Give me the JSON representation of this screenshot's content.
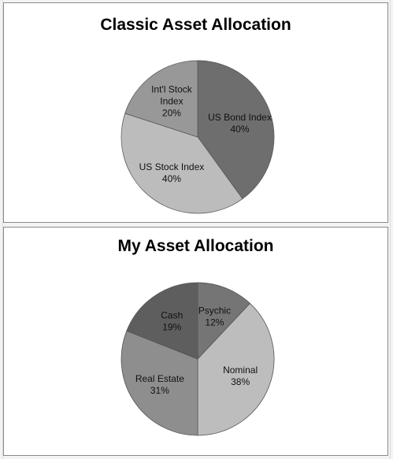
{
  "chart_data": [
    {
      "type": "pie",
      "title": "Classic Asset Allocation",
      "slices": [
        {
          "label_lines": [
            "US Bond Index",
            "40%"
          ],
          "value": 40,
          "color": "#6e6e6e"
        },
        {
          "label_lines": [
            "US Stock Index",
            "40%"
          ],
          "value": 40,
          "color": "#bcbcbc"
        },
        {
          "label_lines": [
            "Int'l Stock",
            "Index",
            "20%"
          ],
          "value": 20,
          "color": "#989898"
        }
      ]
    },
    {
      "type": "pie",
      "title": "My Asset Allocation",
      "slices": [
        {
          "label_lines": [
            "Psychic",
            "12%"
          ],
          "value": 12,
          "color": "#757575"
        },
        {
          "label_lines": [
            "Nominal",
            "38%"
          ],
          "value": 38,
          "color": "#bdbdbd"
        },
        {
          "label_lines": [
            "Real Estate",
            "31%"
          ],
          "value": 31,
          "color": "#8e8e8e"
        },
        {
          "label_lines": [
            "Cash",
            "19%"
          ],
          "value": 19,
          "color": "#5e5e5e"
        }
      ]
    }
  ]
}
